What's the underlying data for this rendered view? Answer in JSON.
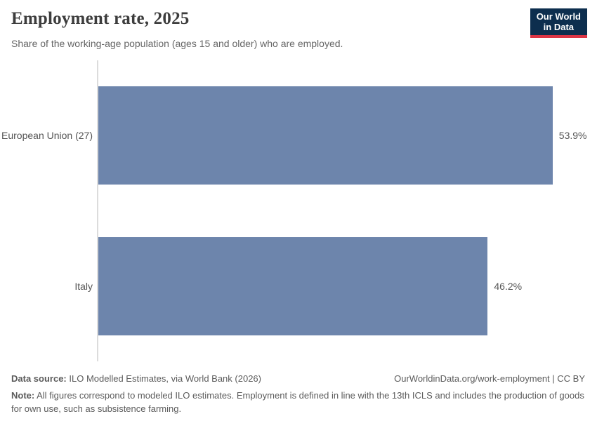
{
  "header": {
    "title": "Employment rate, 2025",
    "subtitle": "Share of the working-age population (ages 15 and older) who are employed."
  },
  "logo": {
    "line1": "Our World",
    "line2": "in Data"
  },
  "chart_data": {
    "type": "bar",
    "orientation": "horizontal",
    "title": "Employment rate, 2025",
    "categories": [
      "European Union (27)",
      "Italy"
    ],
    "values": [
      53.9,
      46.2
    ],
    "value_labels": [
      "53.9%",
      "46.2%"
    ],
    "xlabel": "",
    "ylabel": "",
    "xlim": [
      0,
      59
    ],
    "grid": false,
    "legend": "none"
  },
  "colors": {
    "bar": "#6d85ac",
    "logo_bg": "#0d2e4e",
    "logo_accent": "#dc3545",
    "axis_line": "#dcdcdc"
  },
  "footer": {
    "data_source_label": "Data source:",
    "data_source_text": "ILO Modelled Estimates, via World Bank (2026)",
    "link_text": "OurWorldinData.org/work-employment | CC BY",
    "note_label": "Note:",
    "note_text": "All figures correspond to modeled ILO estimates. Employment is defined in line with the 13th ICLS and includes the production of goods for own use, such as subsistence farming."
  }
}
